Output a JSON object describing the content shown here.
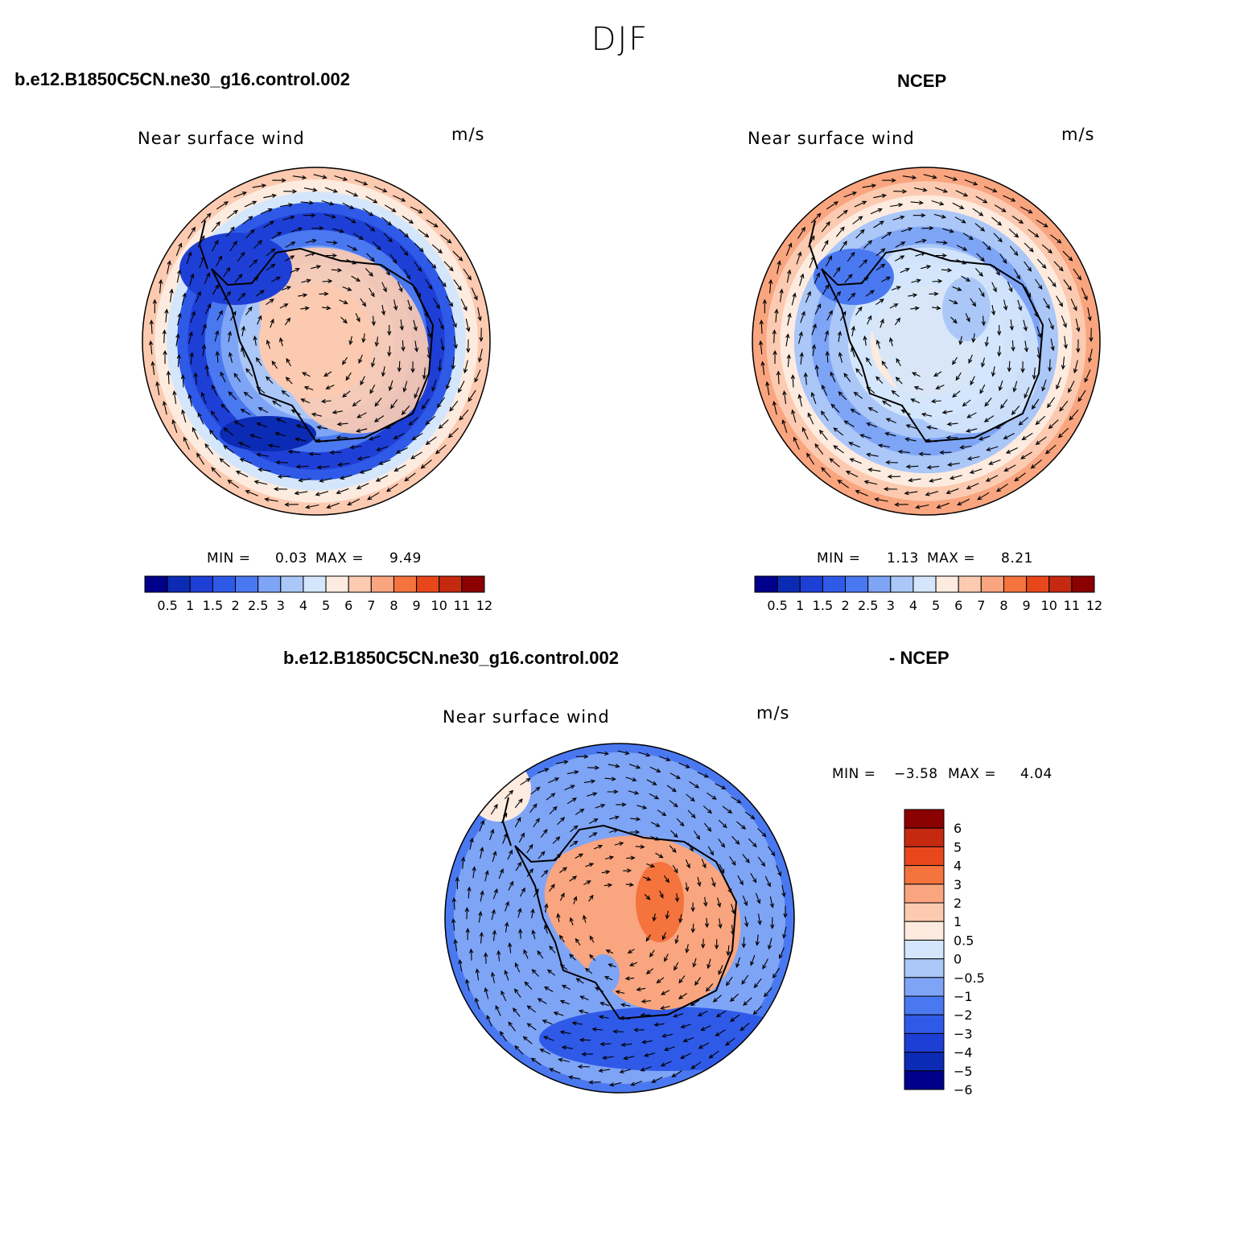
{
  "figure": {
    "season": "DJF",
    "top_left_case": "b.e12.B1850C5CN.ne30_g16.control.002",
    "top_right_case": "NCEP",
    "diff_case_left": "b.e12.B1850C5CN.ne30_g16.control.002",
    "diff_case_right": "- NCEP"
  },
  "chart_data": [
    {
      "type": "heatmap",
      "projection": "south-polar-stereographic",
      "overlay": "wind-vectors",
      "title": "Near surface wind",
      "units": "m/s",
      "min_label": "MIN =",
      "max_label": "MAX =",
      "min": "0.03",
      "max": "9.49",
      "levels": [
        "0.5",
        "1",
        "1.5",
        "2",
        "2.5",
        "3",
        "4",
        "5",
        "6",
        "7",
        "8",
        "9",
        "10",
        "11",
        "12"
      ],
      "colors": [
        "#00008b",
        "#0c2bb4",
        "#1e3fd6",
        "#2f5ae8",
        "#4a78f0",
        "#7ea4f6",
        "#aac7f8",
        "#d4e6fb",
        "#fdebdf",
        "#fccab0",
        "#f9a57f",
        "#f5733d",
        "#e8471b",
        "#c52a10",
        "#8b0000"
      ]
    },
    {
      "type": "heatmap",
      "projection": "south-polar-stereographic",
      "overlay": "wind-vectors",
      "title": "Near surface wind",
      "units": "m/s",
      "min_label": "MIN =",
      "max_label": "MAX =",
      "min": "1.13",
      "max": "8.21",
      "levels": [
        "0.5",
        "1",
        "1.5",
        "2",
        "2.5",
        "3",
        "4",
        "5",
        "6",
        "7",
        "8",
        "9",
        "10",
        "11",
        "12"
      ],
      "colors": [
        "#00008b",
        "#0c2bb4",
        "#1e3fd6",
        "#2f5ae8",
        "#4a78f0",
        "#7ea4f6",
        "#aac7f8",
        "#d4e6fb",
        "#fdebdf",
        "#fccab0",
        "#f9a57f",
        "#f5733d",
        "#e8471b",
        "#c52a10",
        "#8b0000"
      ]
    },
    {
      "type": "heatmap",
      "projection": "south-polar-stereographic",
      "overlay": "wind-vectors",
      "title": "Near surface wind",
      "units": "m/s",
      "min_label": "MIN =",
      "max_label": "MAX =",
      "min": "−3.58",
      "max": "4.04",
      "levels": [
        "6",
        "5",
        "4",
        "3",
        "2",
        "1",
        "0.5",
        "0",
        "−0.5",
        "−1",
        "−2",
        "−3",
        "−4",
        "−5",
        "−6"
      ],
      "colors": [
        "#8b0000",
        "#c52a10",
        "#e8471b",
        "#f5733d",
        "#f9a57f",
        "#fccab0",
        "#fdebdf",
        "#d4e6fb",
        "#aac7f8",
        "#7ea4f6",
        "#4a78f0",
        "#2f5ae8",
        "#1e3fd6",
        "#0c2bb4",
        "#00008b"
      ]
    }
  ]
}
